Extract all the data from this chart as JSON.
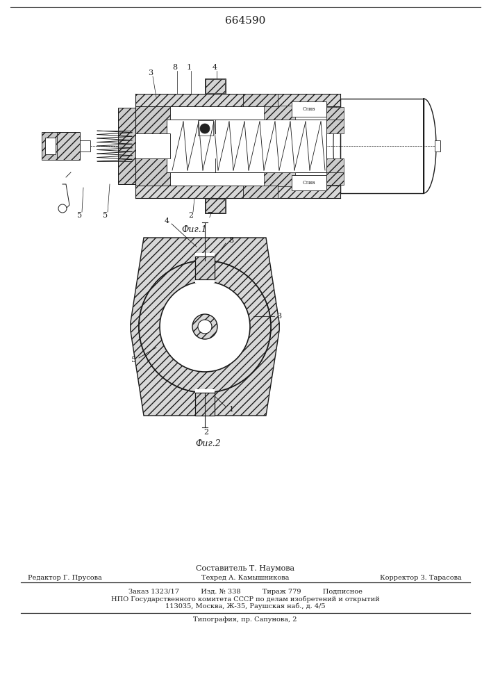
{
  "patent_number": "664590",
  "fig1_caption": "Фиг.1",
  "fig2_caption": "Фиг.2",
  "footer_line1": "Составитель Т. Наумова",
  "footer_line2_left": "Редактор Г. Прусова",
  "footer_line2_mid": "Техред А. Камышникова",
  "footer_line2_right": "Корректор З. Тарасова",
  "footer_line3": "Заказ 1323/17          Изд. № 338          Тираж 779          Подписное",
  "footer_line4": "НПО Государственного комитета СССР по делам изобретений и открытий",
  "footer_line5": "113035, Москва, Ж-35, Раушская наб., д. 4/5",
  "footer_line6": "Типография, пр. Сапунова, 2",
  "bg_color": "#ffffff",
  "line_color": "#1a1a1a"
}
